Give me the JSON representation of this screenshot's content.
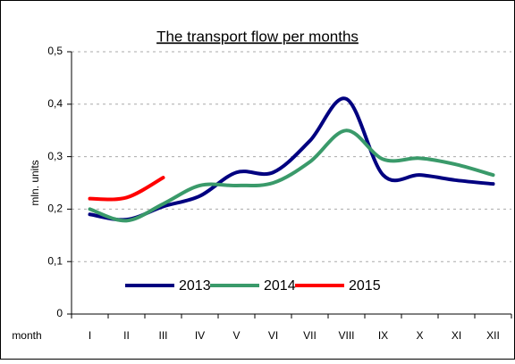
{
  "chart_data": {
    "type": "line",
    "title": "The transport flow per months",
    "ylabel": "mln. units",
    "xlabel": "month",
    "categories": [
      "I",
      "II",
      "III",
      "IV",
      "V",
      "VI",
      "VII",
      "VIII",
      "IX",
      "X",
      "XI",
      "XII"
    ],
    "series": [
      {
        "name": "2013",
        "color": "#000080",
        "values": [
          0.19,
          0.18,
          0.205,
          0.225,
          0.27,
          0.27,
          0.33,
          0.41,
          0.265,
          0.265,
          0.255,
          0.248
        ]
      },
      {
        "name": "2014",
        "color": "#3a9a6a",
        "values": [
          0.2,
          0.178,
          0.21,
          0.245,
          0.245,
          0.25,
          0.29,
          0.35,
          0.295,
          0.297,
          0.285,
          0.265
        ]
      },
      {
        "name": "2015",
        "color": "#ff0000",
        "values": [
          0.22,
          0.222,
          0.26,
          null,
          null,
          null,
          null,
          null,
          null,
          null,
          null,
          null
        ]
      }
    ],
    "ylim": [
      0,
      0.5
    ],
    "yticks": [
      0,
      {
        "value": 0.1,
        "label": "0,1"
      },
      {
        "value": 0.2,
        "label": "0,2"
      },
      {
        "value": 0.3,
        "label": "0,3"
      },
      {
        "value": 0.4,
        "label": "0,4"
      },
      {
        "value": 0.5,
        "label": "0,5"
      }
    ],
    "grid": true,
    "legend": "bottom"
  }
}
